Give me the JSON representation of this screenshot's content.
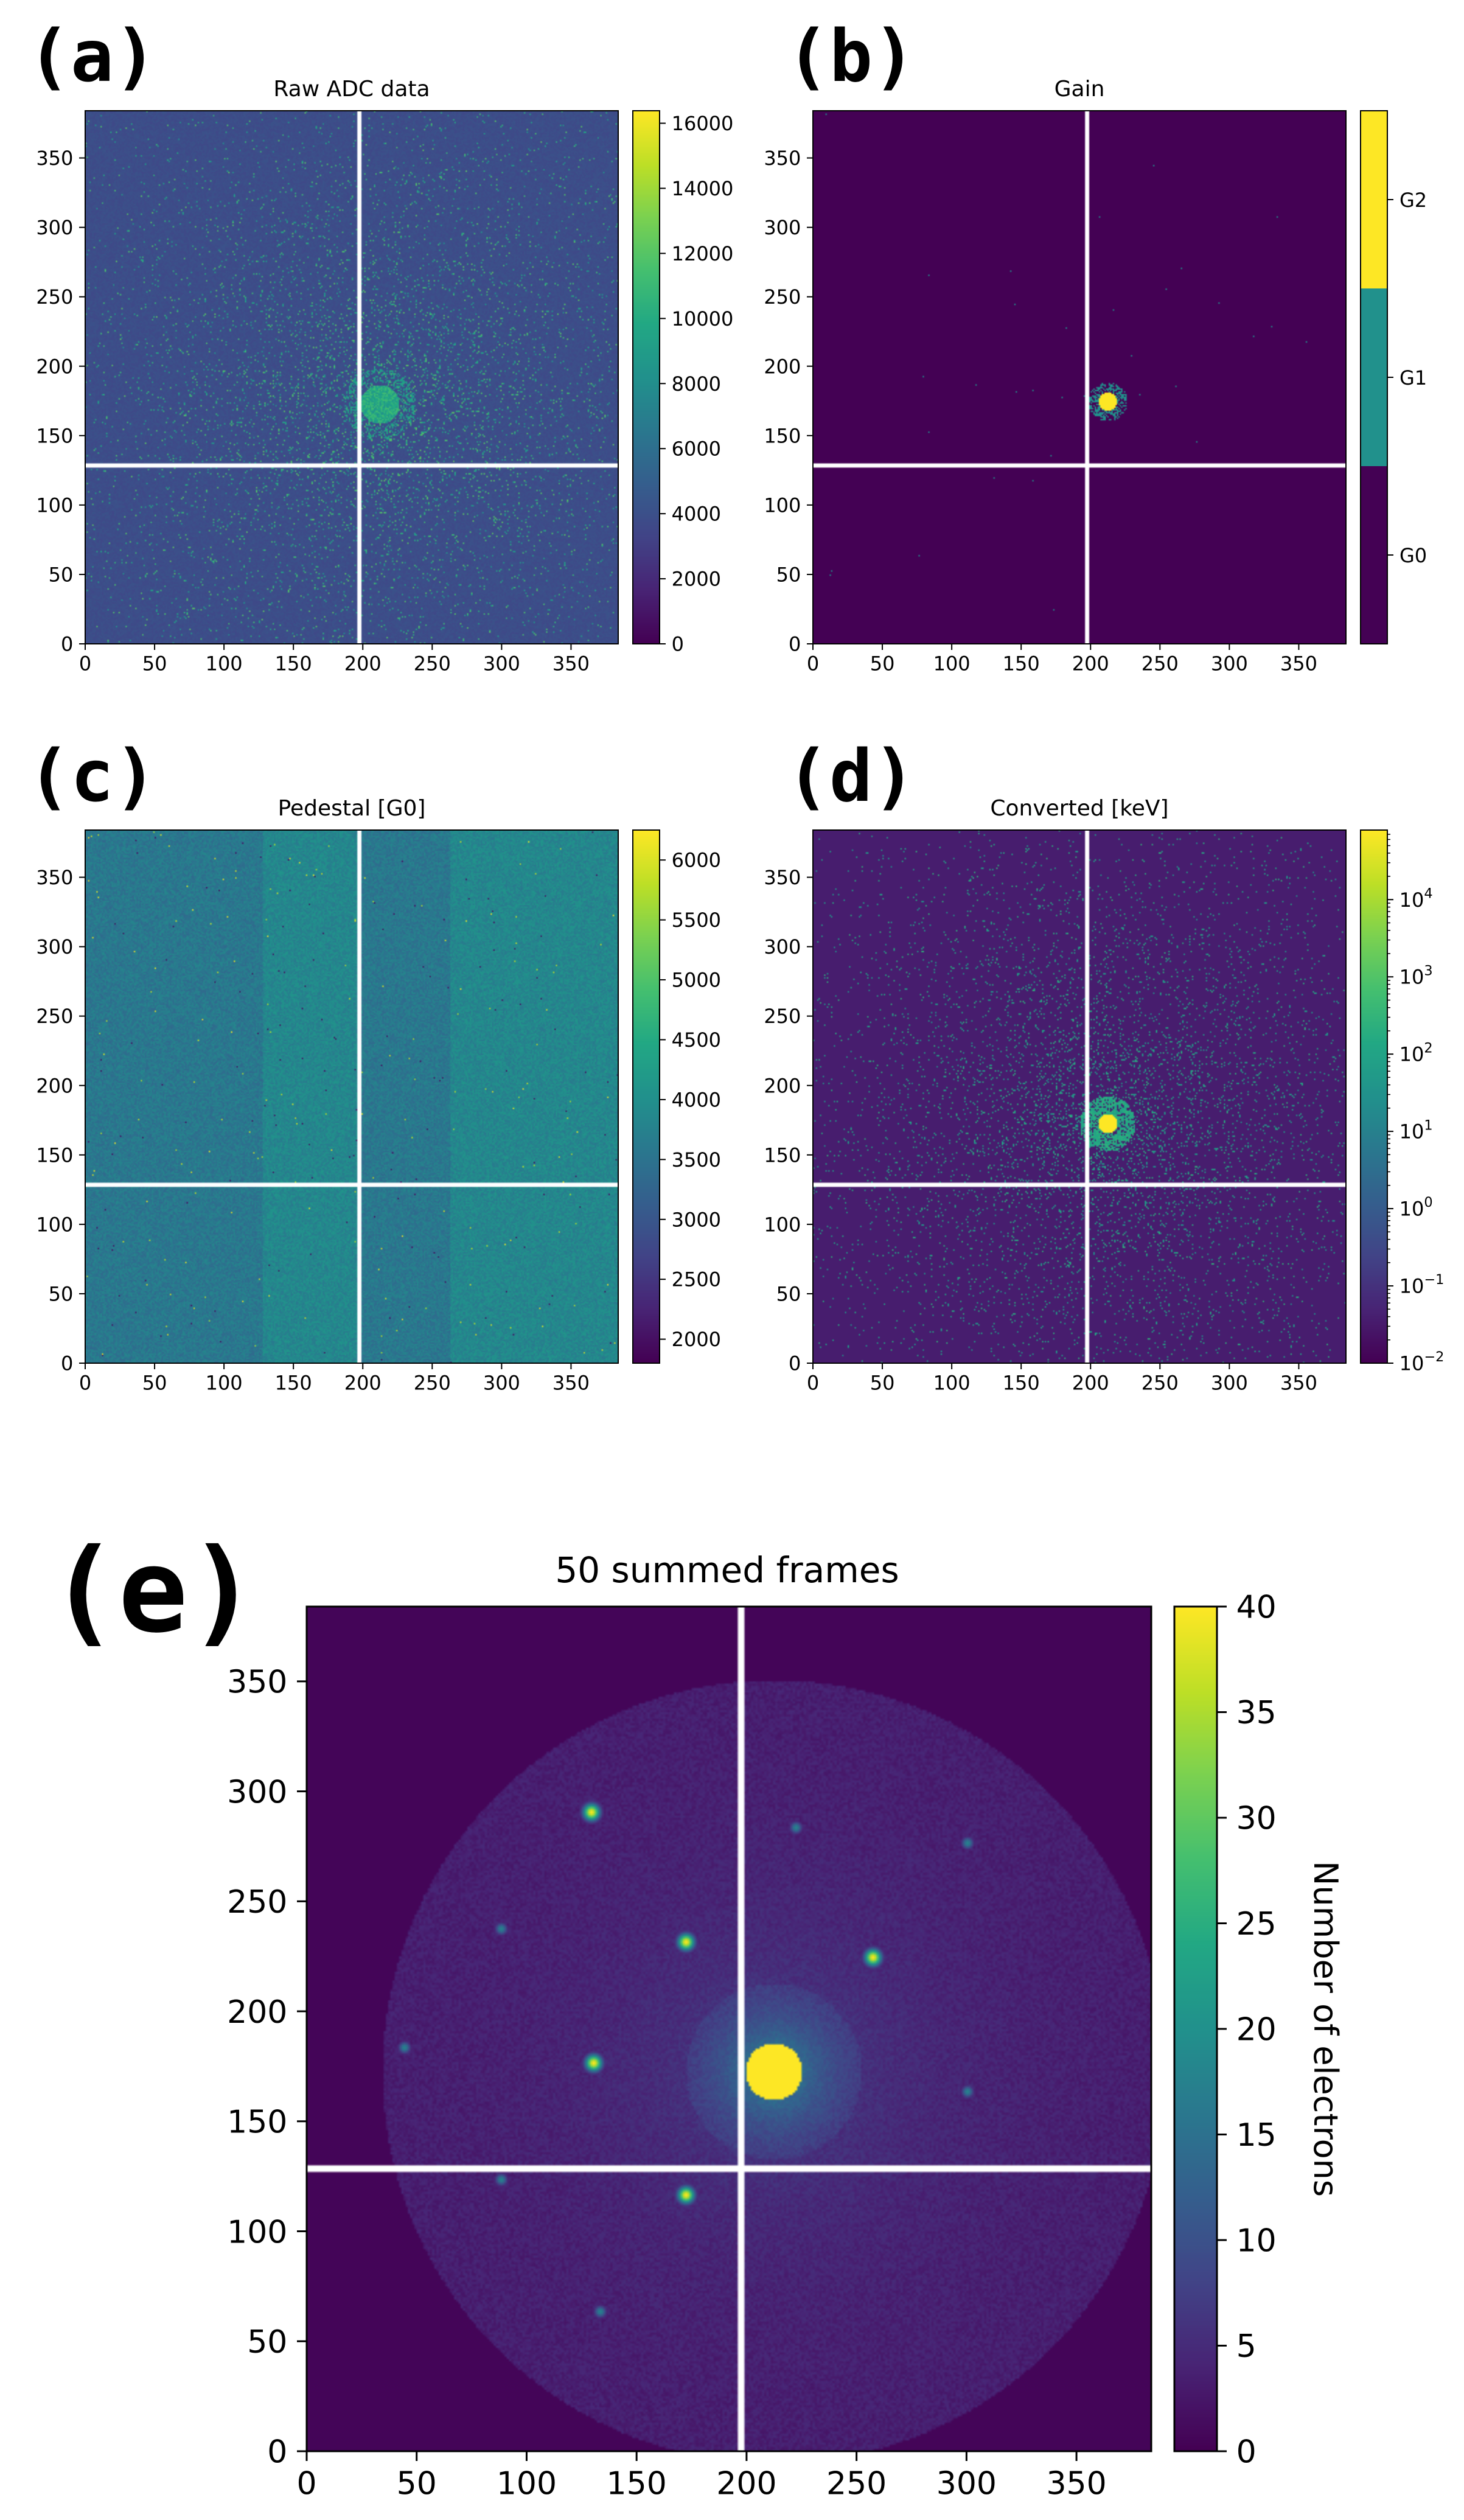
{
  "chart_data": [
    {
      "id": "a",
      "panel_label": "(a)",
      "type": "heatmap",
      "title": "Raw ADC data",
      "xlim": [
        0,
        384
      ],
      "ylim": [
        0,
        384
      ],
      "xticks": [
        0,
        50,
        100,
        150,
        200,
        250,
        300,
        350
      ],
      "yticks": [
        0,
        50,
        100,
        150,
        200,
        250,
        300,
        350
      ],
      "gap_x": 197,
      "gap_y": 128,
      "center": [
        212,
        172
      ],
      "colormap": "viridis",
      "colorbar": {
        "scale": "linear",
        "range": [
          0,
          16384
        ],
        "ticks": [
          0,
          2000,
          4000,
          6000,
          8000,
          10000,
          12000,
          14000,
          16000
        ],
        "tick_labels": [
          "0",
          "2000",
          "4000",
          "6000",
          "8000",
          "10000",
          "12000",
          "14000",
          "16000"
        ],
        "label": ""
      }
    },
    {
      "id": "b",
      "panel_label": "(b)",
      "type": "heatmap",
      "title": "Gain",
      "xlim": [
        0,
        384
      ],
      "ylim": [
        0,
        384
      ],
      "xticks": [
        0,
        50,
        100,
        150,
        200,
        250,
        300,
        350
      ],
      "yticks": [
        0,
        50,
        100,
        150,
        200,
        250,
        300,
        350
      ],
      "gap_x": 197,
      "gap_y": 128,
      "center": [
        212,
        174
      ],
      "colormap": "viridis",
      "colorbar": {
        "scale": "categorical",
        "categories": [
          "G0",
          "G1",
          "G2"
        ],
        "label": ""
      }
    },
    {
      "id": "c",
      "panel_label": "(c)",
      "type": "heatmap",
      "title": "Pedestal [G0]",
      "xlim": [
        0,
        384
      ],
      "ylim": [
        0,
        384
      ],
      "xticks": [
        0,
        50,
        100,
        150,
        200,
        250,
        300,
        350
      ],
      "yticks": [
        0,
        50,
        100,
        150,
        200,
        250,
        300,
        350
      ],
      "gap_x": 197,
      "gap_y": 128,
      "colormap": "viridis",
      "colorbar": {
        "scale": "linear",
        "range": [
          1800,
          6250
        ],
        "ticks": [
          2000,
          2500,
          3000,
          3500,
          4000,
          4500,
          5000,
          5500,
          6000
        ],
        "tick_labels": [
          "2000",
          "2500",
          "3000",
          "3500",
          "4000",
          "4500",
          "5000",
          "5500",
          "6000"
        ],
        "label": ""
      }
    },
    {
      "id": "d",
      "panel_label": "(d)",
      "type": "heatmap",
      "title": "Converted [keV]",
      "xlim": [
        0,
        384
      ],
      "ylim": [
        0,
        384
      ],
      "xticks": [
        0,
        50,
        100,
        150,
        200,
        250,
        300,
        350
      ],
      "yticks": [
        0,
        50,
        100,
        150,
        200,
        250,
        300,
        350
      ],
      "gap_x": 197,
      "gap_y": 128,
      "center": [
        212,
        172
      ],
      "colormap": "viridis",
      "colorbar": {
        "scale": "log",
        "range_exp": [
          -2,
          4.9
        ],
        "ticks_exp": [
          -2,
          -1,
          0,
          1,
          2,
          3,
          4
        ],
        "tick_base": "10",
        "label": ""
      }
    },
    {
      "id": "e",
      "panel_label": "(e)",
      "type": "heatmap",
      "title": "50 summed frames",
      "xlim": [
        0,
        384
      ],
      "ylim": [
        0,
        384
      ],
      "xticks": [
        0,
        50,
        100,
        150,
        200,
        250,
        300,
        350
      ],
      "yticks": [
        0,
        50,
        100,
        150,
        200,
        250,
        300,
        350
      ],
      "gap_x": 197,
      "gap_y": 128,
      "center": [
        212,
        172
      ],
      "colormap": "viridis",
      "colorbar": {
        "scale": "linear",
        "range": [
          0,
          40
        ],
        "ticks": [
          0,
          5,
          10,
          15,
          20,
          25,
          30,
          35,
          40
        ],
        "tick_labels": [
          "0",
          "5",
          "10",
          "15",
          "20",
          "25",
          "30",
          "35",
          "40"
        ],
        "label": "Number of electrons"
      },
      "bragg_spots": [
        [
          129,
          290
        ],
        [
          172,
          231
        ],
        [
          257,
          224
        ],
        [
          130,
          176
        ],
        [
          172,
          116
        ],
        [
          222,
          283
        ],
        [
          300,
          276
        ],
        [
          88,
          237
        ],
        [
          133,
          63
        ],
        [
          88,
          123
        ],
        [
          44,
          183
        ],
        [
          300,
          163
        ]
      ]
    }
  ]
}
